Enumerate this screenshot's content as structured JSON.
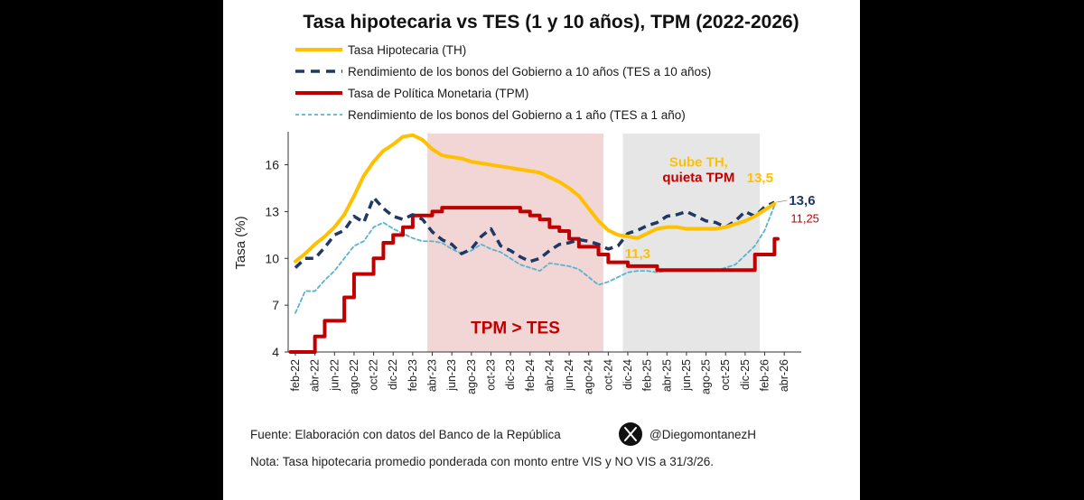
{
  "colors": {
    "th": "#FFC000",
    "tes10": "#1F3864",
    "tpm": "#C00000",
    "tes1": "#5BB3D0",
    "shade_tpm": "#F2D6D6",
    "shade_sube": "#E6E6E6"
  },
  "footer": {
    "source": "Fuente: Elaboración con datos del Banco de la República",
    "handle": "@DiegomontanezH",
    "handle_icon": "x-logo-icon",
    "note": "Nota: Tasa hipotecaria promedio ponderada con monto entre VIS y NO VIS a 31/3/26."
  },
  "chart_data": {
    "type": "line",
    "title": "Tasa hipotecaria vs TES (1 y 10 años), TPM (2022-2026)",
    "ylabel": "Tasa (%)",
    "xlabel": "",
    "ylim": [
      4,
      18
    ],
    "yticks": [
      4,
      7,
      10,
      13,
      16
    ],
    "x_tick_labels": [
      "feb-22",
      "abr-22",
      "jun-22",
      "ago-22",
      "oct-22",
      "dic-22",
      "feb-23",
      "abr-23",
      "jun-23",
      "ago-23",
      "oct-23",
      "dic-23",
      "feb-24",
      "abr-24",
      "jun-24",
      "ago-24",
      "oct-24",
      "dic-24",
      "feb-25",
      "abr-25",
      "jun-25",
      "ago-25",
      "oct-25",
      "dic-25",
      "feb-26",
      "abr-26"
    ],
    "x": [
      "feb-22",
      "mar-22",
      "abr-22",
      "may-22",
      "jun-22",
      "jul-22",
      "ago-22",
      "sep-22",
      "oct-22",
      "nov-22",
      "dic-22",
      "ene-23",
      "feb-23",
      "mar-23",
      "abr-23",
      "may-23",
      "jun-23",
      "jul-23",
      "ago-23",
      "sep-23",
      "oct-23",
      "nov-23",
      "dic-23",
      "ene-24",
      "feb-24",
      "mar-24",
      "abr-24",
      "may-24",
      "jun-24",
      "jul-24",
      "ago-24",
      "sep-24",
      "oct-24",
      "nov-24",
      "dic-24",
      "ene-25",
      "feb-25",
      "mar-25",
      "abr-25",
      "may-25",
      "jun-25",
      "jul-25",
      "ago-25",
      "sep-25",
      "oct-25",
      "nov-25",
      "dic-25",
      "ene-26",
      "feb-26",
      "mar-26"
    ],
    "series": [
      {
        "name": "Tasa Hipotecaria (TH)",
        "key": "th",
        "style": "solid",
        "values": [
          9.8,
          10.3,
          10.9,
          11.4,
          12.0,
          12.8,
          14.0,
          15.3,
          16.2,
          16.9,
          17.3,
          17.8,
          17.9,
          17.6,
          17.0,
          16.6,
          16.5,
          16.4,
          16.2,
          16.1,
          16.0,
          15.9,
          15.8,
          15.7,
          15.6,
          15.5,
          15.2,
          14.9,
          14.5,
          14.0,
          13.2,
          12.4,
          11.8,
          11.5,
          11.4,
          11.3,
          11.6,
          11.9,
          12.0,
          12.0,
          11.9,
          11.9,
          11.9,
          11.9,
          12.0,
          12.2,
          12.4,
          12.7,
          13.1,
          13.5
        ]
      },
      {
        "name": "Rendimiento de los bonos del Gobierno a 10 años (TES a 10 años)",
        "key": "tes10",
        "style": "dashed",
        "values": [
          9.4,
          10.0,
          10.0,
          10.7,
          11.5,
          11.8,
          12.7,
          12.3,
          13.9,
          13.2,
          12.7,
          12.5,
          12.8,
          12.5,
          11.7,
          11.2,
          10.9,
          10.3,
          10.6,
          11.4,
          11.9,
          10.8,
          10.5,
          10.1,
          9.8,
          10.0,
          10.5,
          10.9,
          11.0,
          11.2,
          11.1,
          10.9,
          10.6,
          10.8,
          11.6,
          11.8,
          12.1,
          12.3,
          12.7,
          12.8,
          13.0,
          12.7,
          12.4,
          12.3,
          12.0,
          12.4,
          13.0,
          12.7,
          13.3,
          13.6
        ]
      },
      {
        "name": "Tasa de Política Monetaria (TPM)",
        "key": "tpm",
        "style": "solid",
        "values": [
          4.0,
          4.0,
          5.0,
          6.0,
          6.0,
          7.5,
          9.0,
          9.0,
          10.0,
          11.0,
          11.5,
          12.0,
          12.75,
          12.75,
          13.0,
          13.25,
          13.25,
          13.25,
          13.25,
          13.25,
          13.25,
          13.25,
          13.25,
          13.0,
          12.75,
          12.5,
          12.0,
          11.75,
          11.25,
          10.75,
          10.75,
          10.25,
          9.75,
          9.75,
          9.5,
          9.5,
          9.5,
          9.25,
          9.25,
          9.25,
          9.25,
          9.25,
          9.25,
          9.25,
          9.25,
          9.25,
          9.25,
          10.25,
          10.25,
          11.25
        ]
      },
      {
        "name": "Rendimiento de los bonos del Gobierno a 1 año (TES a 1 año)",
        "key": "tes1",
        "style": "dotted",
        "values": [
          6.5,
          7.9,
          7.9,
          8.6,
          9.2,
          10.0,
          10.8,
          11.1,
          12.0,
          12.3,
          11.9,
          11.6,
          11.3,
          11.1,
          11.1,
          11.0,
          10.6,
          10.3,
          10.5,
          10.9,
          10.6,
          10.4,
          10.0,
          9.6,
          9.4,
          9.2,
          9.7,
          9.6,
          9.5,
          9.3,
          8.8,
          8.3,
          8.5,
          8.8,
          9.1,
          9.2,
          9.2,
          9.1,
          9.2,
          9.2,
          9.2,
          9.3,
          9.2,
          9.2,
          9.4,
          9.6,
          10.2,
          10.8,
          11.8,
          13.4
        ]
      }
    ],
    "shaded_regions": [
      {
        "label": "TPM > TES",
        "from": "abr-23",
        "to": "sep-24",
        "color_key": "shade_tpm"
      },
      {
        "label_line1": "Sube TH,",
        "label_line2": "quieta TPM",
        "from": "dic-24",
        "to": "ene-26",
        "color_key": "shade_sube"
      }
    ],
    "annotations": {
      "th_min": "11,3",
      "th_last": "13,5",
      "tes10_last": "13,6",
      "tpm_last": "11,25"
    },
    "legend_position": "top",
    "grid": false
  }
}
